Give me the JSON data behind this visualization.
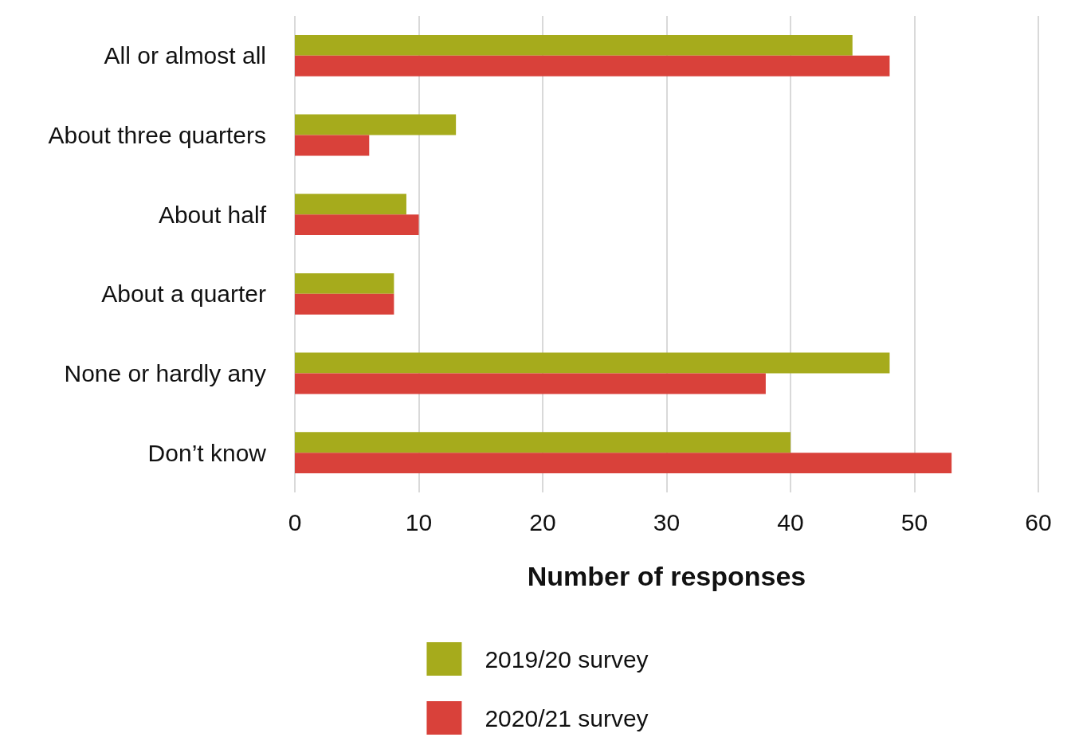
{
  "chart_data": {
    "type": "bar",
    "orientation": "horizontal",
    "xlabel": "Number of responses",
    "categories": [
      "All or almost all",
      "About three quarters",
      "About half",
      "About a quarter",
      "None or hardly any",
      "Don’t know"
    ],
    "series": [
      {
        "name": "2019/20 survey",
        "color": "#a6ab1c",
        "values": [
          45,
          13,
          9,
          8,
          48,
          40
        ]
      },
      {
        "name": "2020/21 survey",
        "color": "#d9413a",
        "values": [
          48,
          6,
          10,
          8,
          38,
          53
        ]
      }
    ],
    "xlim": [
      0,
      60
    ],
    "xticks": [
      0,
      10,
      20,
      30,
      40,
      50,
      60
    ],
    "grid": "x",
    "legend": "bottom"
  }
}
